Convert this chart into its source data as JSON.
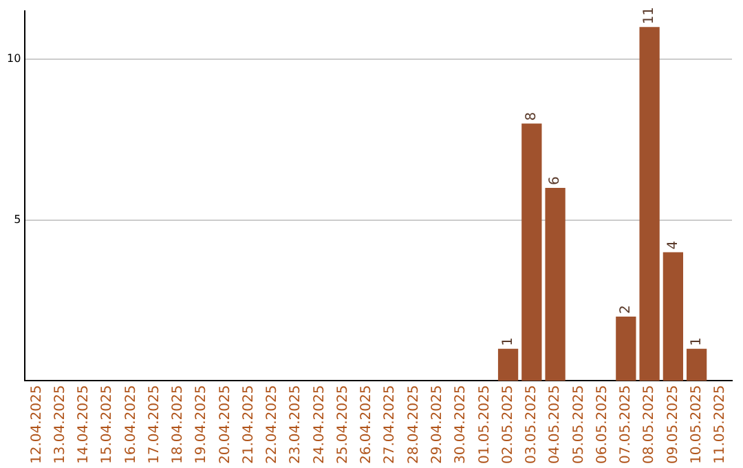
{
  "chart_data": {
    "type": "bar",
    "categories": [
      "12.04.2025",
      "13.04.2025",
      "14.04.2025",
      "15.04.2025",
      "16.04.2025",
      "17.04.2025",
      "18.04.2025",
      "19.04.2025",
      "20.04.2025",
      "21.04.2025",
      "22.04.2025",
      "23.04.2025",
      "24.04.2025",
      "25.04.2025",
      "26.04.2025",
      "27.04.2025",
      "28.04.2025",
      "29.04.2025",
      "30.04.2025",
      "01.05.2025",
      "02.05.2025",
      "03.05.2025",
      "04.05.2025",
      "05.05.2025",
      "06.05.2025",
      "07.05.2025",
      "08.05.2025",
      "09.05.2025",
      "10.05.2025",
      "11.05.2025"
    ],
    "values": [
      0,
      0,
      0,
      0,
      0,
      0,
      0,
      0,
      0,
      0,
      0,
      0,
      0,
      0,
      0,
      0,
      0,
      0,
      0,
      0,
      1,
      8,
      6,
      0,
      0,
      2,
      11,
      4,
      1,
      0
    ],
    "value_labels": [
      null,
      null,
      null,
      null,
      null,
      null,
      null,
      null,
      null,
      null,
      null,
      null,
      null,
      null,
      null,
      null,
      null,
      null,
      null,
      null,
      "1",
      "8",
      "6",
      null,
      null,
      "2",
      "11",
      "4",
      "1",
      null
    ],
    "color": "#a0522d",
    "ylim": [
      0,
      11.5
    ],
    "yticks": [
      5,
      10
    ],
    "grid": "y",
    "legend": false
  }
}
